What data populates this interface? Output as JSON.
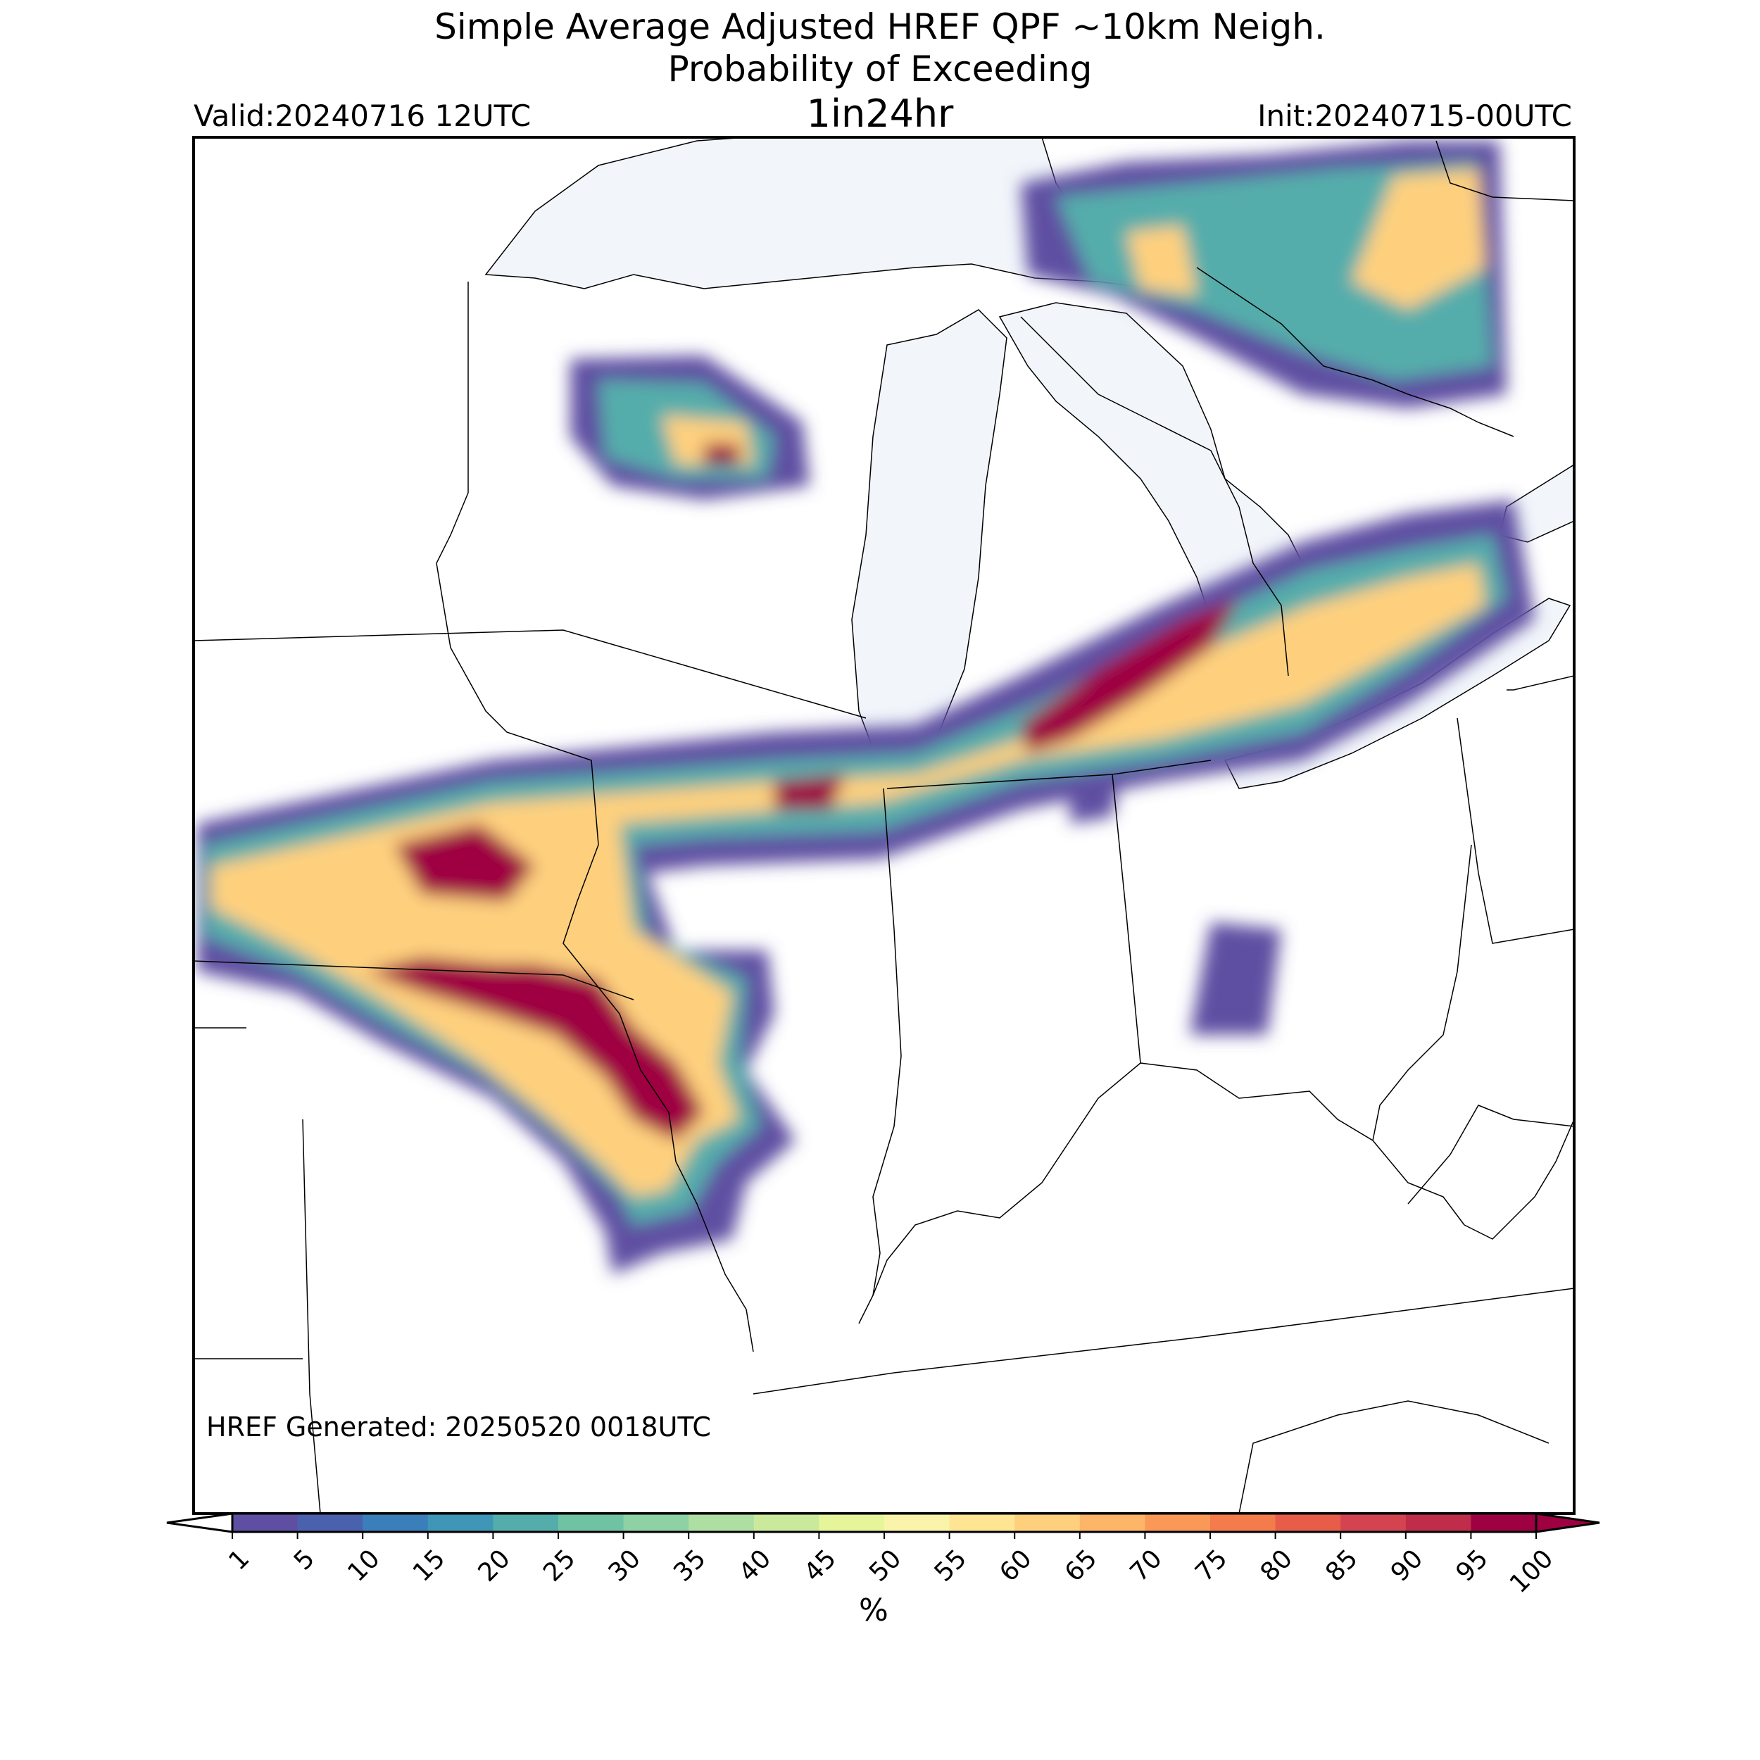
{
  "header": {
    "title_line1": "Simple Average Adjusted HREF QPF ~10km Neigh.",
    "title_line2": "Probability of Exceeding",
    "title_line3": "1in24hr",
    "valid": "Valid:20240716 12UTC",
    "init": "Init:20240715-00UTC"
  },
  "map": {
    "generated_note": "HREF Generated: 20250520 0018UTC",
    "water_color": "#f2f6fb",
    "border_color": "#000000"
  },
  "colorbar": {
    "ticks": [
      "1",
      "5",
      "10",
      "15",
      "20",
      "25",
      "30",
      "35",
      "40",
      "45",
      "50",
      "55",
      "60",
      "65",
      "70",
      "75",
      "80",
      "85",
      "90",
      "95",
      "100"
    ],
    "colors": [
      "#5e4fa2",
      "#4a62ae",
      "#3a7fb9",
      "#3f96b7",
      "#55adab",
      "#6fc3a4",
      "#8ed1a4",
      "#afdea3",
      "#cbe99d",
      "#e6f59a",
      "#f9f4a9",
      "#fee594",
      "#fed07e",
      "#fdb567",
      "#fa9857",
      "#f47b4b",
      "#e75d4a",
      "#d44450",
      "#bf2d4a",
      "#9e0142"
    ],
    "unit": "%"
  }
}
